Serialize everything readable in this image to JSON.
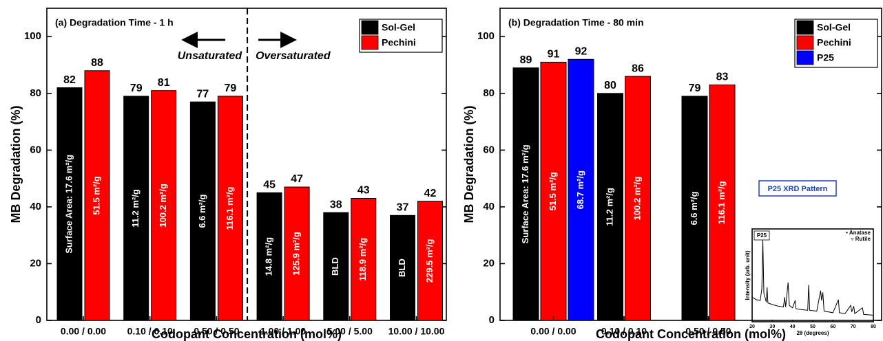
{
  "chart_data": [
    {
      "type": "bar",
      "title": "(a) Degradation Time - 1 h",
      "xlabel": "Codopant Concentration (mol%)",
      "ylabel": "MB Degradation (%)",
      "categories": [
        "0.00 / 0.00",
        "0.10 / 0.10",
        "0.50 / 0.50",
        "1.00 / 1.00",
        "5.00 / 5.00",
        "10.00 / 10.00"
      ],
      "series": [
        {
          "name": "Sol-Gel",
          "color": "#000000",
          "values": [
            82,
            79,
            77,
            45,
            38,
            37
          ],
          "labels": [
            "Surface Area:  17.6 m²/g",
            "11.2 m²/g",
            "6.6 m²/g",
            "14.8 m²/g",
            "BLD",
            "BLD"
          ]
        },
        {
          "name": "Pechini",
          "color": "#ff0000",
          "values": [
            88,
            81,
            79,
            47,
            43,
            42
          ],
          "labels": [
            "51.5 m²/g",
            "100.2 m²/g",
            "116.1 m²/g",
            "125.9 m²/g",
            "118.9 m²/g",
            "229.5 m²/g"
          ]
        }
      ],
      "annotations": [
        "Unsaturated",
        "Oversaturated"
      ],
      "ylim": [
        0,
        110
      ],
      "yticks": [
        0,
        20,
        40,
        60,
        80,
        100
      ],
      "legend": "top-right"
    },
    {
      "type": "bar",
      "title": "(b) Degradation Time - 80 min",
      "xlabel": "Codopant Concentration (mol%)",
      "ylabel": "MB Degradation (%)",
      "categories": [
        "0.00 / 0.00",
        "0.10 / 0.10",
        "0.50 / 0.50"
      ],
      "series": [
        {
          "name": "Sol-Gel",
          "color": "#000000",
          "values": [
            89,
            80,
            79
          ],
          "labels": [
            "Surface Area:  17.6 m²/g",
            "11.2 m²/g",
            "6.6 m²/g"
          ]
        },
        {
          "name": "Pechini",
          "color": "#ff0000",
          "values": [
            91,
            86,
            83
          ],
          "labels": [
            "51.5 m²/g",
            "100.2 m²/g",
            "116.1 m²/g"
          ]
        },
        {
          "name": "P25",
          "color": "#0000ff",
          "values": [
            92,
            null,
            null
          ],
          "labels": [
            "68.7 m²/g",
            null,
            null
          ]
        }
      ],
      "ylim": [
        0,
        110
      ],
      "yticks": [
        0,
        20,
        40,
        60,
        80,
        100
      ],
      "legend": "top-right"
    },
    {
      "type": "line",
      "title": "P25 XRD Pattern",
      "label": "P25",
      "xlabel": "2θ (degrees)",
      "ylabel": "Intensity (arb. unit)",
      "annotations": [
        "• Anatase",
        "▿ Rutile"
      ],
      "x": [
        20,
        22,
        24,
        24.8,
        25.3,
        25.8,
        27,
        27.4,
        27.8,
        30,
        33,
        35.5,
        36.1,
        36.6,
        37.8,
        38.4,
        40,
        41.3,
        41.7,
        44,
        47.5,
        48,
        48.5,
        52,
        53.9,
        54.4,
        55,
        55.6,
        60,
        62.7,
        63.2,
        66,
        68.8,
        69.3,
        70.3,
        70.8,
        74.6,
        75.2,
        80
      ],
      "series": [
        {
          "color": "#000000",
          "values": [
            0.3,
            0.27,
            0.26,
            0.4,
            1.0,
            0.35,
            0.24,
            0.42,
            0.23,
            0.21,
            0.19,
            0.18,
            0.3,
            0.18,
            0.48,
            0.2,
            0.17,
            0.26,
            0.16,
            0.15,
            0.14,
            0.45,
            0.14,
            0.13,
            0.38,
            0.26,
            0.36,
            0.13,
            0.11,
            0.27,
            0.11,
            0.1,
            0.2,
            0.12,
            0.19,
            0.1,
            0.17,
            0.09,
            0.08
          ]
        }
      ],
      "xlim": [
        20,
        80
      ],
      "xticks": [
        20,
        30,
        40,
        50,
        60,
        70,
        80
      ],
      "ylim": [
        0,
        1.05
      ]
    }
  ]
}
